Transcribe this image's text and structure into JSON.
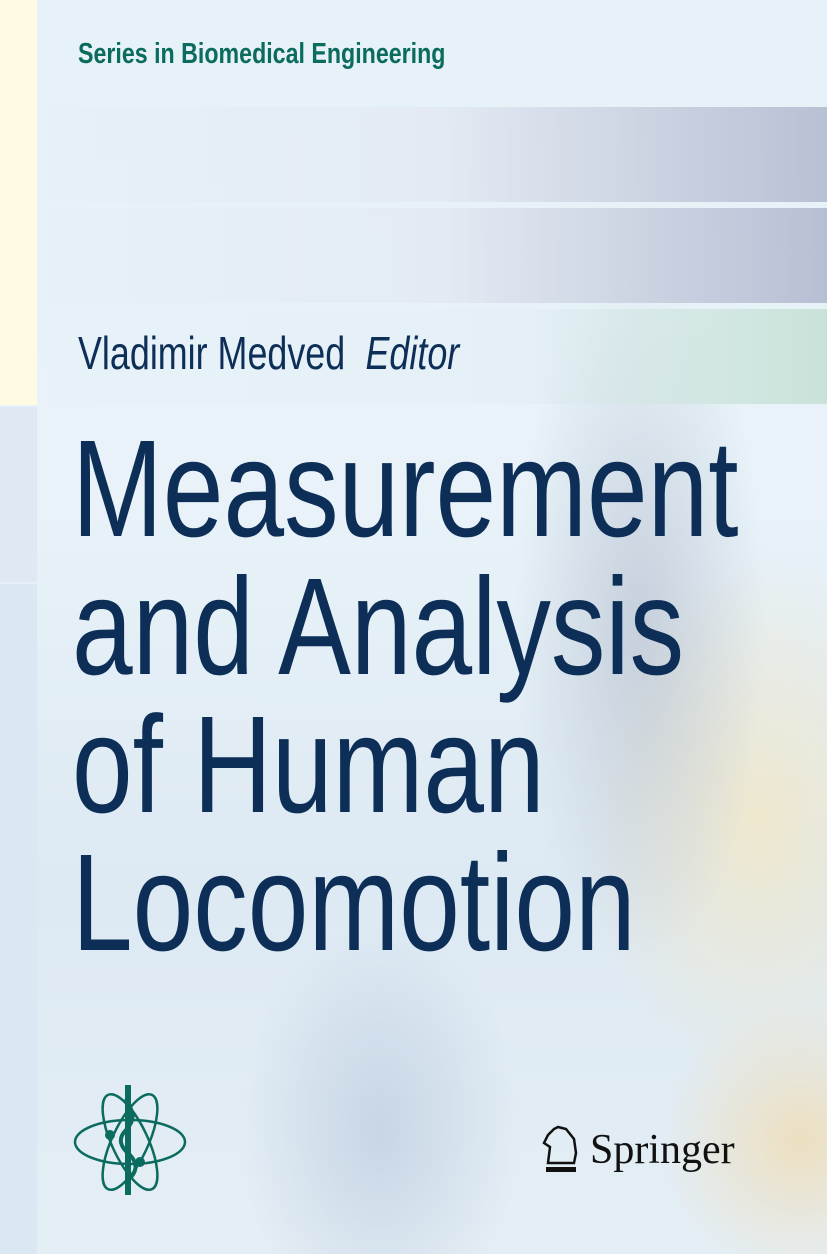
{
  "series": "Series in Biomedical Engineering",
  "author": {
    "name": "Vladimir Medved",
    "role": "Editor"
  },
  "title_lines": [
    "Measurement",
    "and Analysis",
    "of Human",
    "Locomotion"
  ],
  "publisher": "Springer",
  "colors": {
    "title": "#0d2f57",
    "series": "#0c6b5f",
    "logo": "#0c6b5f"
  },
  "icons": {
    "series_logo": "caduceus-atom-logo",
    "publisher_logo": "springer-chess-knight-logo"
  }
}
